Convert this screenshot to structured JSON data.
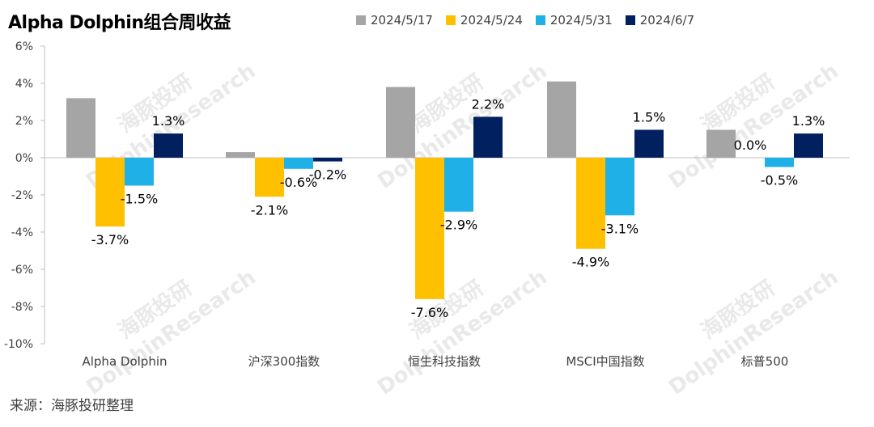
{
  "title": "Alpha Dolphin组合周收益",
  "source": "来源：海豚投研整理",
  "watermark_lines": [
    "海豚投研",
    "DolphinResearch"
  ],
  "colors": {
    "2024/5/17": "#a5a5a5",
    "2024/5/24": "#ffc000",
    "2024/5/31": "#1eb0e6",
    "2024/6/7": "#002060",
    "axis": "#bfbfbf",
    "text": "#404040"
  },
  "chart_data": {
    "type": "bar",
    "title": "Alpha Dolphin组合周收益",
    "categories": [
      "Alpha Dolphin",
      "沪深300指数",
      "恒生科技指数",
      "MSCI中国指数",
      "标普500"
    ],
    "series": [
      {
        "name": "2024/5/17",
        "values": [
          3.2,
          0.3,
          3.8,
          4.1,
          1.5
        ],
        "labels": [
          "",
          "",
          "",
          "",
          ""
        ]
      },
      {
        "name": "2024/5/24",
        "values": [
          -3.7,
          -2.1,
          -7.6,
          -4.9,
          0.0
        ],
        "labels": [
          "-3.7%",
          "-2.1%",
          "-7.6%",
          "-4.9%",
          "0.0%"
        ]
      },
      {
        "name": "2024/5/31",
        "values": [
          -1.5,
          -0.6,
          -2.9,
          -3.1,
          -0.5
        ],
        "labels": [
          "-1.5%",
          "-0.6%",
          "-2.9%",
          "-3.1%",
          "-0.5%"
        ]
      },
      {
        "name": "2024/6/7",
        "values": [
          1.3,
          -0.2,
          2.2,
          1.5,
          1.3
        ],
        "labels": [
          "1.3%",
          "-0.2%",
          "2.2%",
          "1.5%",
          "1.3%"
        ]
      }
    ],
    "ylim": [
      -10,
      6
    ],
    "yticks": [
      6,
      4,
      2,
      0,
      -2,
      -4,
      -6,
      -8,
      -10
    ],
    "ytick_labels": [
      "6%",
      "4%",
      "2%",
      "0%",
      "-2%",
      "-4%",
      "-6%",
      "-8%",
      "-10%"
    ],
    "legend_position": "top",
    "grid": false
  }
}
